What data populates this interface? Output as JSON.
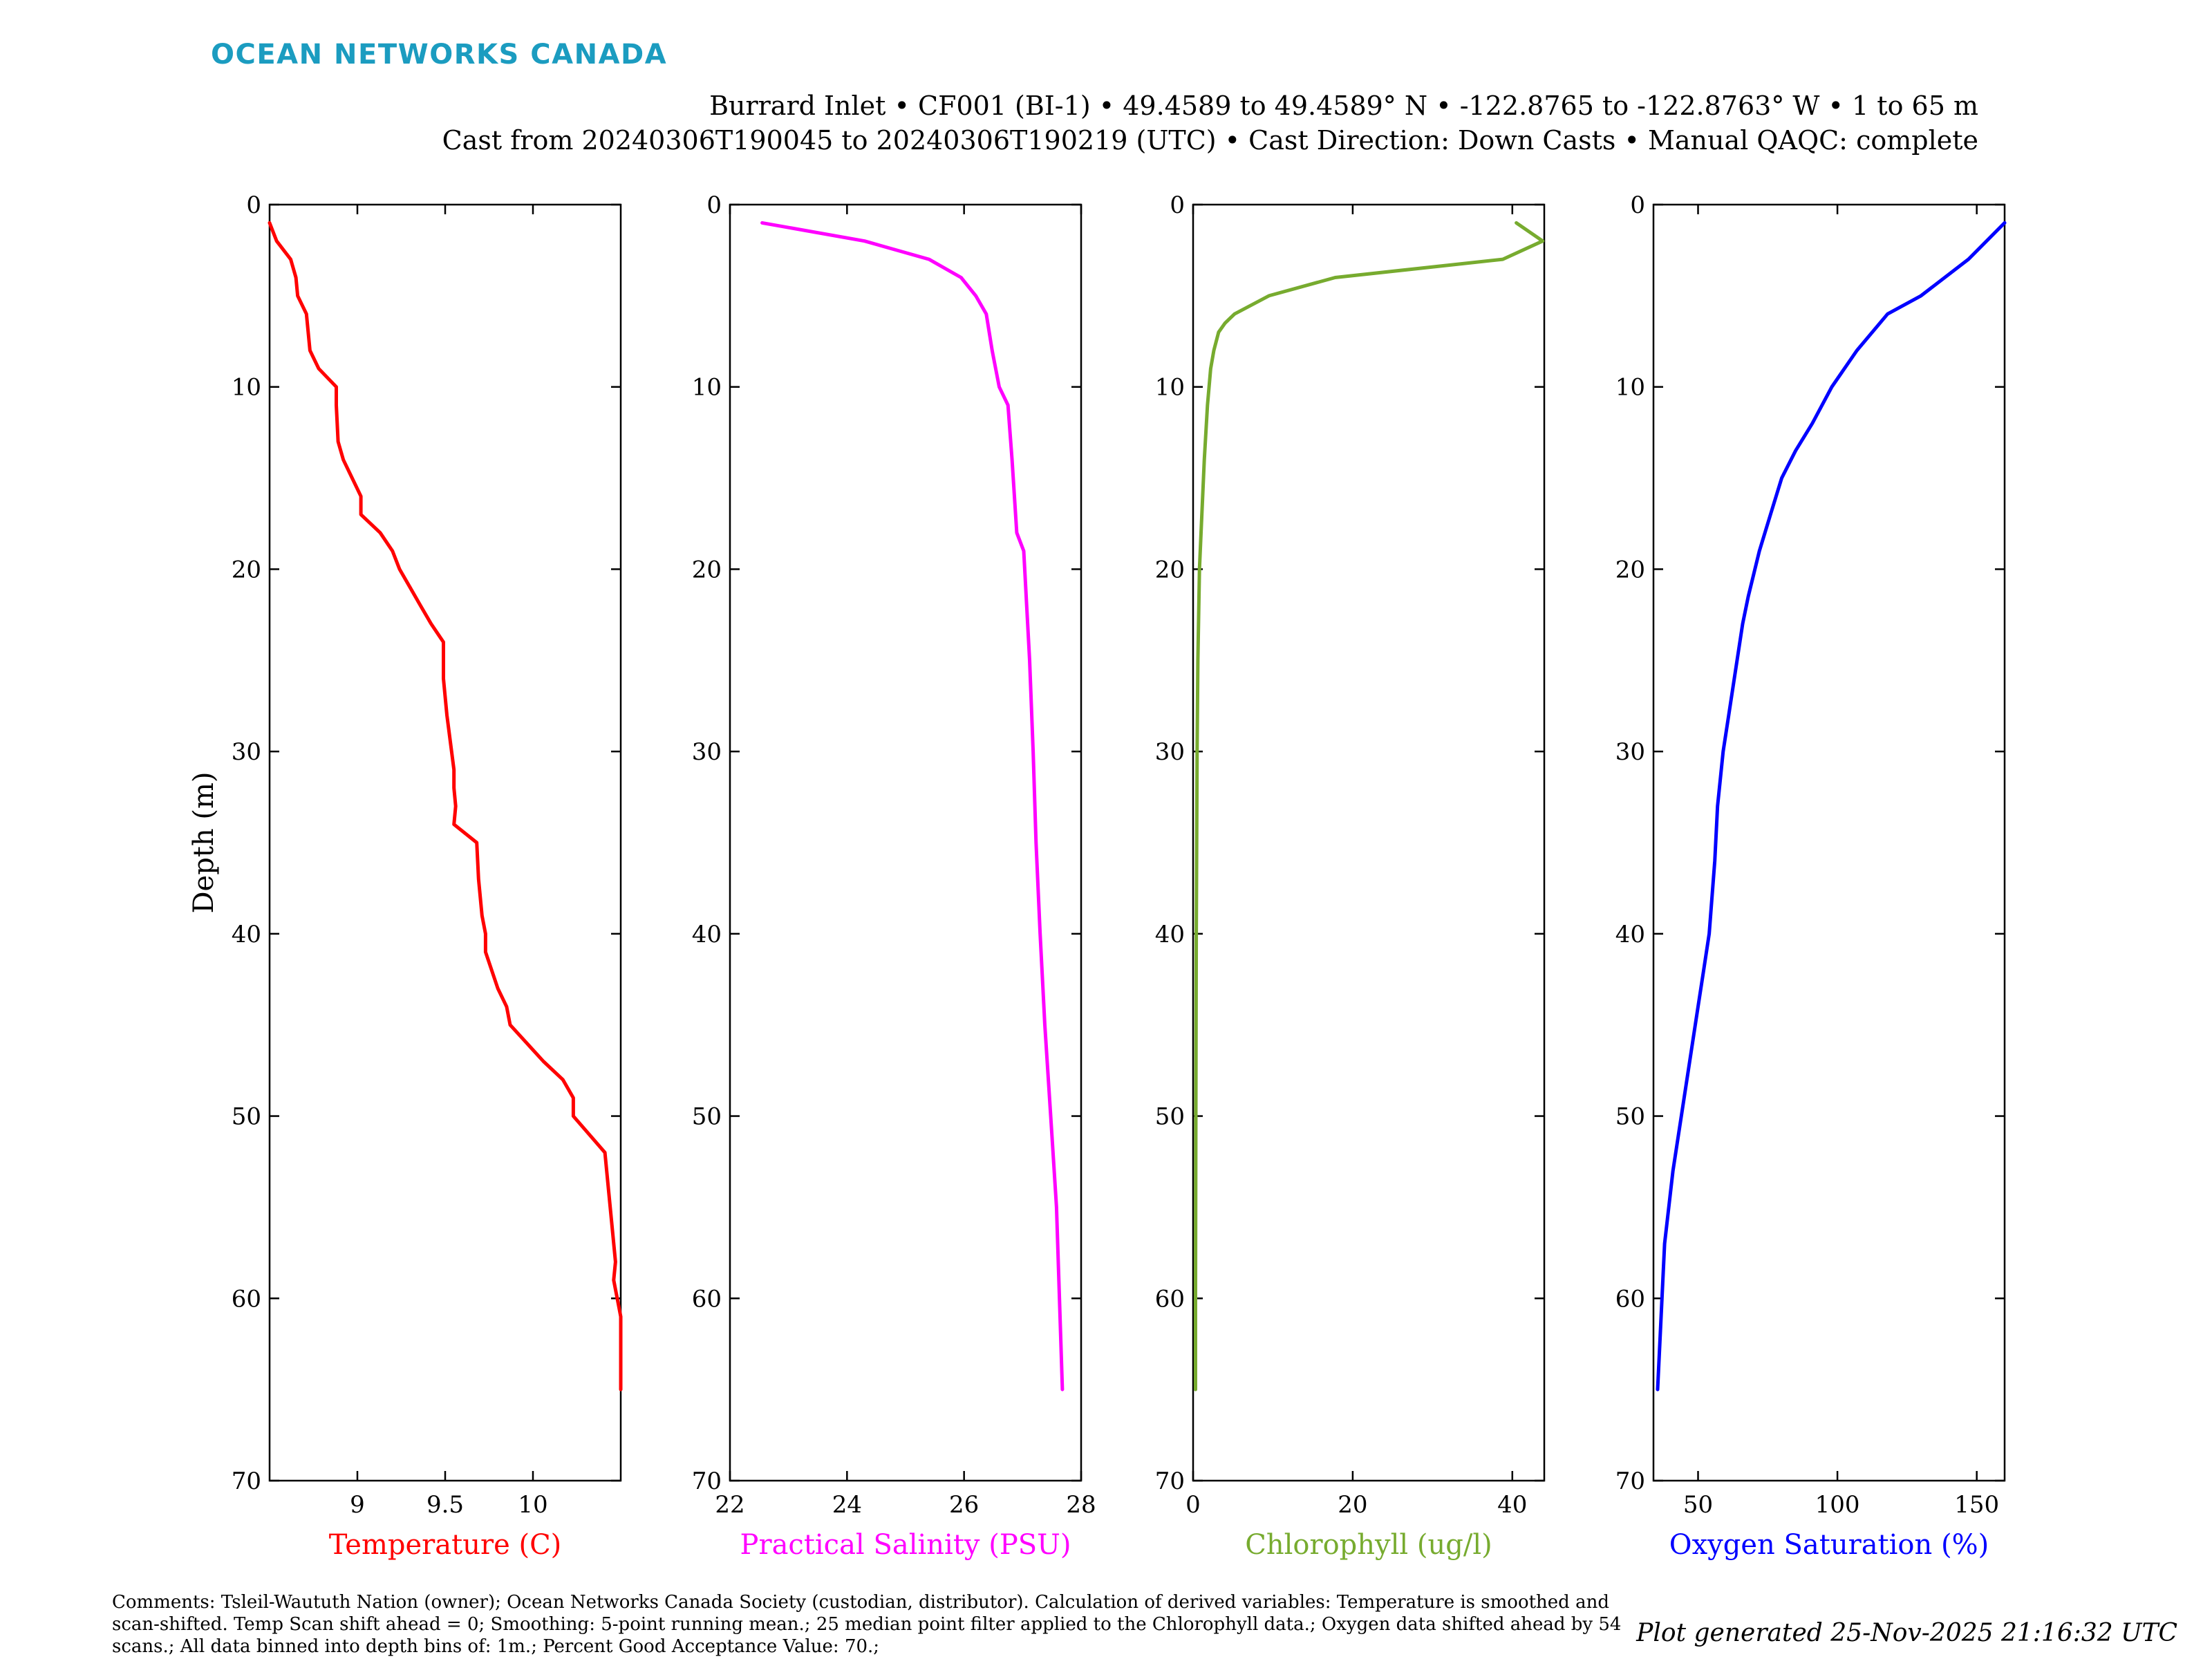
{
  "header": {
    "logo_text": "OCEAN NETWORKS CANADA",
    "logo_color": "#1b9cc0",
    "title_line1": "Burrard Inlet • CF001 (BI-1) • 49.4589 to 49.4589° N • -122.8765 to -122.8763° W • 1 to 65 m",
    "title_line2": "Cast from 20240306T190045 to 20240306T190219 (UTC) • Cast Direction: Down Casts • Manual QAQC: complete"
  },
  "footer": {
    "comments_line1": "Comments: Tsleil-Waututh Nation (owner); Ocean Networks Canada Society (custodian, distributor). Calculation of derived variables: Temperature is smoothed and",
    "comments_line2": "scan-shifted. Temp Scan shift ahead = 0; Smoothing: 5-point running mean.; 25 median point filter applied to the Chlorophyll data.; Oxygen data shifted ahead by 54",
    "comments_line3": "scans.; All data binned into depth bins of: 1m.; Percent Good Acceptance Value: 70.;",
    "generated": "Plot generated 25-Nov-2025 21:16:32 UTC"
  },
  "chart_data": [
    {
      "type": "line",
      "ylabel": "Depth (m)",
      "xlabel": "Temperature (C)",
      "color": "#ff0000",
      "xlim": [
        8.5,
        10.5
      ],
      "ylim": [
        0,
        70
      ],
      "y_reversed": true,
      "xticks": [
        9,
        9.5,
        10
      ],
      "xtick_labels": [
        "9",
        "9.5",
        "10"
      ],
      "yticks": [
        0,
        10,
        20,
        30,
        40,
        50,
        60,
        70
      ],
      "ytick_labels": [
        "0",
        "10",
        "20",
        "30",
        "40",
        "50",
        "60",
        "70"
      ],
      "x": [
        8.5,
        8.54,
        8.62,
        8.65,
        8.66,
        8.71,
        8.73,
        8.78,
        8.88,
        8.88,
        8.89,
        8.92,
        9.02,
        9.02,
        9.13,
        9.2,
        9.24,
        9.3,
        9.36,
        9.42,
        9.49,
        9.49,
        9.49,
        9.51,
        9.55,
        9.55,
        9.56,
        9.55,
        9.68,
        9.69,
        9.71,
        9.73,
        9.73,
        9.8,
        9.85,
        9.87,
        10.06,
        10.17,
        10.23,
        10.23,
        10.41,
        10.43,
        10.45,
        10.47,
        10.46,
        10.48,
        10.5,
        10.5
      ],
      "y": [
        1,
        2,
        3,
        4,
        5,
        6,
        8,
        9,
        10,
        11,
        13,
        14,
        16,
        17,
        18,
        19,
        20,
        21,
        22,
        23,
        24,
        25,
        26,
        28,
        31,
        32,
        33,
        34,
        35,
        37,
        39,
        40,
        41,
        43,
        44,
        45,
        47,
        48,
        49,
        50,
        52,
        54,
        56,
        58,
        59,
        60,
        61,
        65
      ]
    },
    {
      "type": "line",
      "ylabel": "",
      "xlabel": "Practical Salinity (PSU)",
      "color": "#ff00ff",
      "xlim": [
        22,
        28
      ],
      "ylim": [
        0,
        70
      ],
      "y_reversed": true,
      "xticks": [
        22,
        24,
        26,
        28
      ],
      "xtick_labels": [
        "22",
        "24",
        "26",
        "28"
      ],
      "yticks": [
        0,
        10,
        20,
        30,
        40,
        50,
        60,
        70
      ],
      "ytick_labels": [
        "0",
        "10",
        "20",
        "30",
        "40",
        "50",
        "60",
        "70"
      ],
      "x": [
        22.55,
        24.3,
        25.4,
        25.95,
        26.2,
        26.38,
        26.48,
        26.6,
        26.75,
        26.82,
        26.9,
        27.02,
        27.12,
        27.18,
        27.23,
        27.3,
        27.38,
        27.48,
        27.58,
        27.68
      ],
      "y": [
        1,
        2,
        3,
        4,
        5,
        6,
        8,
        10,
        11,
        14,
        18,
        19,
        25,
        30,
        35,
        40,
        45,
        50,
        55,
        65
      ]
    },
    {
      "type": "line",
      "ylabel": "",
      "xlabel": "Chlorophyll (ug/l)",
      "color": "#77ab2f",
      "xlim": [
        0,
        44
      ],
      "ylim": [
        0,
        70
      ],
      "y_reversed": true,
      "xticks": [
        0,
        20,
        40
      ],
      "xtick_labels": [
        "0",
        "20",
        "40"
      ],
      "yticks": [
        0,
        10,
        20,
        30,
        40,
        50,
        60,
        70
      ],
      "ytick_labels": [
        "0",
        "10",
        "20",
        "30",
        "40",
        "50",
        "60",
        "70"
      ],
      "x": [
        40.5,
        43.8,
        38.8,
        17.8,
        9.5,
        5.2,
        4.0,
        3.2,
        2.6,
        2.2,
        1.8,
        1.4,
        1.0,
        0.8,
        0.6,
        0.5,
        0.4,
        0.35,
        0.3,
        0.3
      ],
      "y": [
        1,
        2,
        3,
        4,
        5,
        6,
        6.5,
        7,
        8,
        9,
        11,
        14,
        18,
        20,
        25,
        30,
        40,
        50,
        60,
        65
      ]
    },
    {
      "type": "line",
      "ylabel": "",
      "xlabel": "Oxygen Saturation (%)",
      "color": "#0000ff",
      "xlim": [
        34,
        160
      ],
      "ylim": [
        0,
        70
      ],
      "y_reversed": true,
      "xticks": [
        50,
        100,
        150
      ],
      "xtick_labels": [
        "50",
        "100",
        "150"
      ],
      "yticks": [
        0,
        10,
        20,
        30,
        40,
        50,
        60,
        70
      ],
      "ytick_labels": [
        "0",
        "10",
        "20",
        "30",
        "40",
        "50",
        "60",
        "70"
      ],
      "x": [
        160,
        147,
        130,
        118,
        107,
        98,
        91,
        85,
        80,
        76,
        72,
        68,
        66,
        63,
        61,
        59,
        57,
        56,
        54,
        52,
        50,
        47,
        44,
        41,
        38,
        35.5
      ],
      "y": [
        1,
        3,
        5,
        6,
        8,
        10,
        12,
        13.5,
        15,
        17,
        19,
        21.5,
        23,
        26,
        28,
        30,
        33,
        36,
        40,
        42,
        44,
        47,
        50,
        53,
        57,
        65
      ]
    }
  ]
}
